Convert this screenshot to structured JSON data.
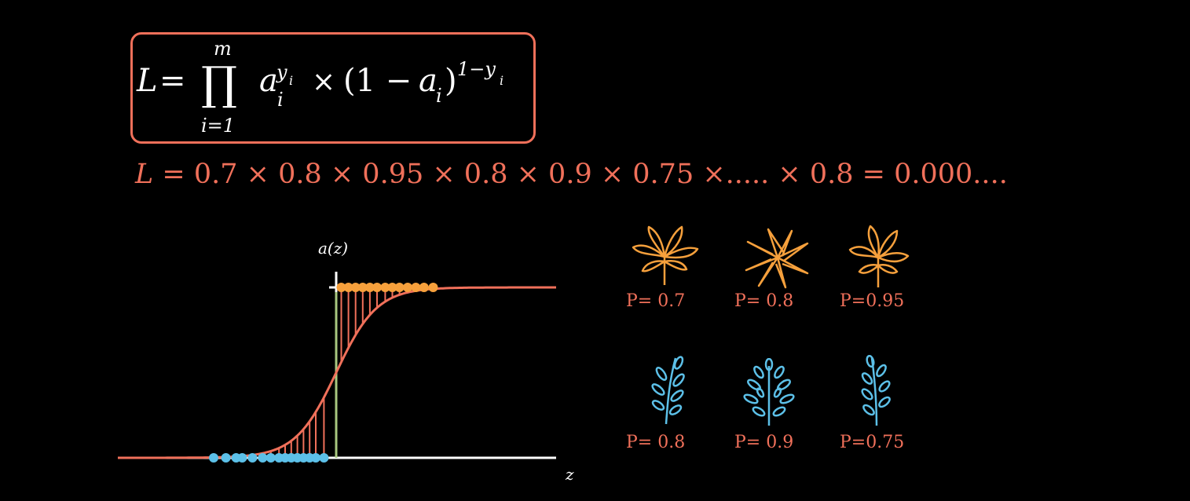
{
  "formula": {
    "lhs": "L",
    "equals": "=",
    "prod_upper": "m",
    "prod_lower": "i=1",
    "a": "a",
    "a_sub": "i",
    "a_sup_y": "y",
    "a_sup_y_sub": "i",
    "times": "×",
    "paren_open": "(1 − ",
    "paren_a": "a",
    "paren_a_sub": "i",
    "paren_close": ")",
    "exp": "1−y",
    "exp_sub": "i"
  },
  "equation_line": {
    "lhs": "L",
    "text": " = 0.7 × 0.8 × 0.95 × 0.8 × 0.9 × 0.75  ×..... × 0.8 = 0.000...."
  },
  "plot": {
    "y_axis_label": "a(z)",
    "x_axis_label": "z",
    "curve_color": "#f0705a",
    "axis_color": "#ffffff",
    "yaxis_color": "#a8c880",
    "orange_color": "#f6a03c",
    "blue_color": "#5cc0e8"
  },
  "chart_data": {
    "type": "scatter",
    "x_axis_label": "z",
    "y_axis_label": "a(z)",
    "curve": "sigmoid",
    "ylim": [
      0,
      1
    ],
    "series": [
      {
        "values_z": [
          0.25,
          0.6,
          0.95,
          1.3,
          1.65,
          2.0,
          2.4,
          2.75,
          3.1,
          3.5,
          3.9,
          4.3,
          4.75
        ],
        "color": "orange"
      },
      {
        "values_z": [
          -6.0,
          -5.4,
          -4.9,
          -4.6,
          -4.1,
          -3.6,
          -3.2,
          -2.8,
          -2.5,
          -2.2,
          -1.9,
          -1.6,
          -1.3,
          -1.0,
          -0.6
        ],
        "color": "blue"
      }
    ]
  },
  "leaves": [
    {
      "type": "orange",
      "prob": "P= 0.7"
    },
    {
      "type": "orange",
      "prob": "P= 0.8"
    },
    {
      "type": "orange",
      "prob": "P=0.95"
    },
    {
      "type": "blue",
      "prob": "P= 0.8"
    },
    {
      "type": "blue",
      "prob": "P= 0.9"
    },
    {
      "type": "blue",
      "prob": "P=0.75"
    }
  ]
}
